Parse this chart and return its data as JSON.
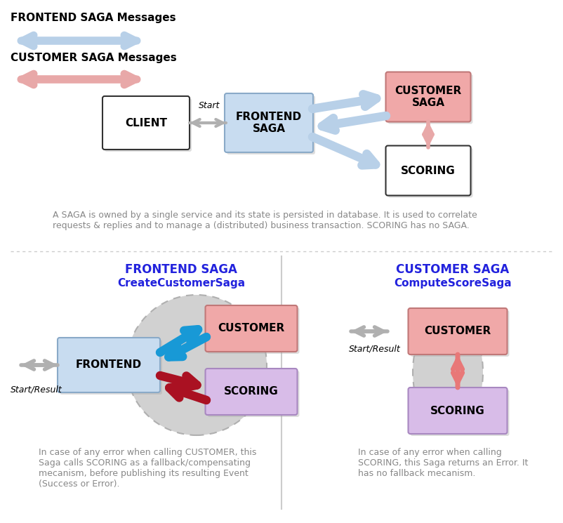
{
  "bg_color": "#ffffff",
  "fig_w": 8.02,
  "fig_h": 7.45,
  "top": {
    "frontend_legend_text": "FRONTEND SAGA Messages",
    "customer_legend_text": "CUSTOMER SAGA Messages",
    "blue_arrow_color": "#b8d0e8",
    "pink_arrow_color": "#e8a8a8",
    "gray_arrow_color": "#b0b0b0",
    "client_label": "CLIENT",
    "frontend_label": "FRONTEND\nSAGA",
    "customer_saga_label": "CUSTOMER\nSAGA",
    "scoring_label": "SCORING",
    "start_label": "Start",
    "client_fc": "#ffffff",
    "client_ec": "#333333",
    "frontend_fc": "#c8dcf0",
    "frontend_ec": "#8aaac8",
    "customer_saga_fc": "#f0a8a8",
    "customer_saga_ec": "#c07878",
    "scoring_fc": "#ffffff",
    "scoring_ec": "#333333",
    "desc": "A SAGA is owned by a single service and its state is persisted in database. It is used to correlate\nrequests & replies and to manage a (distributed) business transaction. SCORING has no SAGA."
  },
  "bottom_left": {
    "title1": "FRONTEND SAGA",
    "title2": "CreateCustomerSaga",
    "frontend_label": "FRONTEND",
    "customer_label": "CUSTOMER",
    "scoring_label": "SCORING",
    "frontend_fc": "#c8dcf0",
    "frontend_ec": "#8aaac8",
    "customer_fc": "#f0a8a8",
    "customer_ec": "#c07878",
    "scoring_fc": "#d8bce8",
    "scoring_ec": "#a888c0",
    "ellipse_fc": "#cccccc",
    "ellipse_ec": "#aaaaaa",
    "blue_arrow": "#1899d6",
    "red_arrow": "#aa1122",
    "gray_arrow": "#b0b0b0",
    "start_result": "Start/Result",
    "desc": "In case of any error when calling CUSTOMER, this\nSaga calls SCORING as a fallback/compensating\nmecanism, before publishing its resulting Event\n(Success or Error)."
  },
  "bottom_right": {
    "title1": "CUSTOMER SAGA",
    "title2": "ComputeScoreSaga",
    "customer_label": "CUSTOMER",
    "scoring_label": "SCORING",
    "customer_fc": "#f0a8a8",
    "customer_ec": "#c07878",
    "scoring_fc": "#d8bce8",
    "scoring_ec": "#a888c0",
    "ellipse_fc": "#cccccc",
    "ellipse_ec": "#aaaaaa",
    "pink_arrow": "#e87878",
    "gray_arrow": "#b0b0b0",
    "start_result": "Start/Result",
    "desc": "In case of any error when calling\nSCORING, this Saga returns an Error. It\nhas no fallback mecanism."
  },
  "title_color": "#2222dd",
  "desc_color": "#888888",
  "divider_color": "#cccccc"
}
